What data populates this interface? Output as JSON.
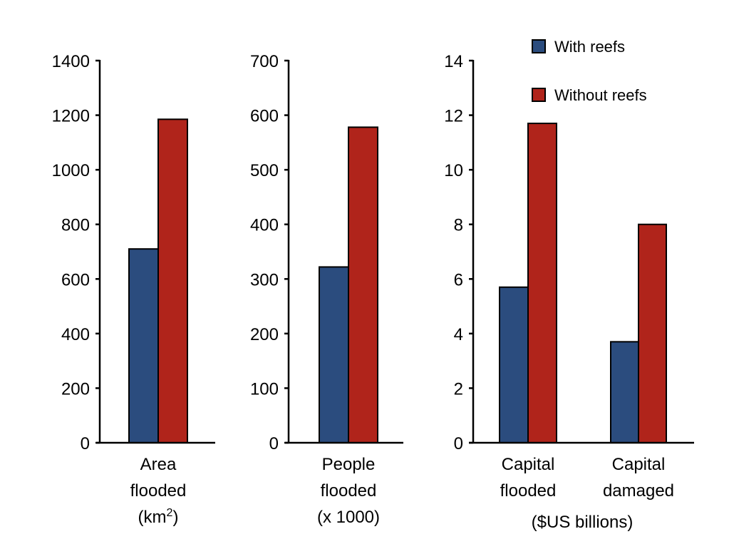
{
  "chart_data": [
    {
      "type": "bar",
      "title": "",
      "categories": [
        "Area flooded (km2)"
      ],
      "category_lines": [
        [
          "Area",
          "flooded",
          "(km",
          "2",
          ")"
        ]
      ],
      "series": [
        {
          "name": "With reefs",
          "values": [
            710
          ]
        },
        {
          "name": "Without reefs",
          "values": [
            1185
          ]
        }
      ],
      "ylim": [
        0,
        1400
      ],
      "yticks": [
        0,
        200,
        400,
        600,
        800,
        1000,
        1200,
        1400
      ],
      "xlabel": "",
      "ylabel": "",
      "grid": false
    },
    {
      "type": "bar",
      "title": "",
      "categories": [
        "People flooded (x 1000)"
      ],
      "category_lines": [
        [
          "People",
          "flooded",
          "(x 1000)"
        ]
      ],
      "series": [
        {
          "name": "With reefs",
          "values": [
            322
          ]
        },
        {
          "name": "Without reefs",
          "values": [
            578
          ]
        }
      ],
      "ylim": [
        0,
        700
      ],
      "yticks": [
        0,
        100,
        200,
        300,
        400,
        500,
        600,
        700
      ],
      "xlabel": "",
      "ylabel": "",
      "grid": false
    },
    {
      "type": "bar",
      "title": "",
      "categories": [
        "Capital flooded",
        "Capital damaged"
      ],
      "category_lines": [
        [
          "Capital",
          "flooded"
        ],
        [
          "Capital",
          "damaged"
        ]
      ],
      "series": [
        {
          "name": "With reefs",
          "values": [
            5.7,
            3.7
          ]
        },
        {
          "name": "Without reefs",
          "values": [
            11.7,
            8.0
          ]
        }
      ],
      "ylim": [
        0,
        14
      ],
      "yticks": [
        0,
        2,
        4,
        6,
        8,
        10,
        12,
        14
      ],
      "xlabel": "($US billions)",
      "ylabel": "",
      "grid": false
    }
  ],
  "legend": {
    "position": "top-right",
    "items": [
      {
        "label": "With reefs",
        "color": "#2b4c7e"
      },
      {
        "label": "Without reefs",
        "color": "#b0241b"
      }
    ]
  },
  "colors": {
    "with_reefs": "#2b4c7e",
    "without_reefs": "#b0241b",
    "axis": "#000000"
  }
}
